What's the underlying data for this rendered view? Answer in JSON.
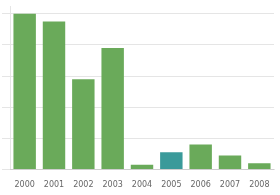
{
  "chart_data": {
    "type": "bar",
    "categories": [
      "2000",
      "2001",
      "2002",
      "2003",
      "2004",
      "2005",
      "2006",
      "2007",
      "2008"
    ],
    "values": [
      100,
      95,
      58,
      78,
      3,
      11,
      16,
      9,
      4
    ],
    "colors": [
      "#6aaa5a",
      "#6aaa5a",
      "#6aaa5a",
      "#6aaa5a",
      "#6aaa5a",
      "#3a9a9a",
      "#6aaa5a",
      "#6aaa5a",
      "#6aaa5a"
    ],
    "ylim": [
      0,
      105
    ],
    "yticks": [
      0,
      20,
      40,
      60,
      80,
      100
    ],
    "grid": true,
    "tick_labels": "x"
  }
}
